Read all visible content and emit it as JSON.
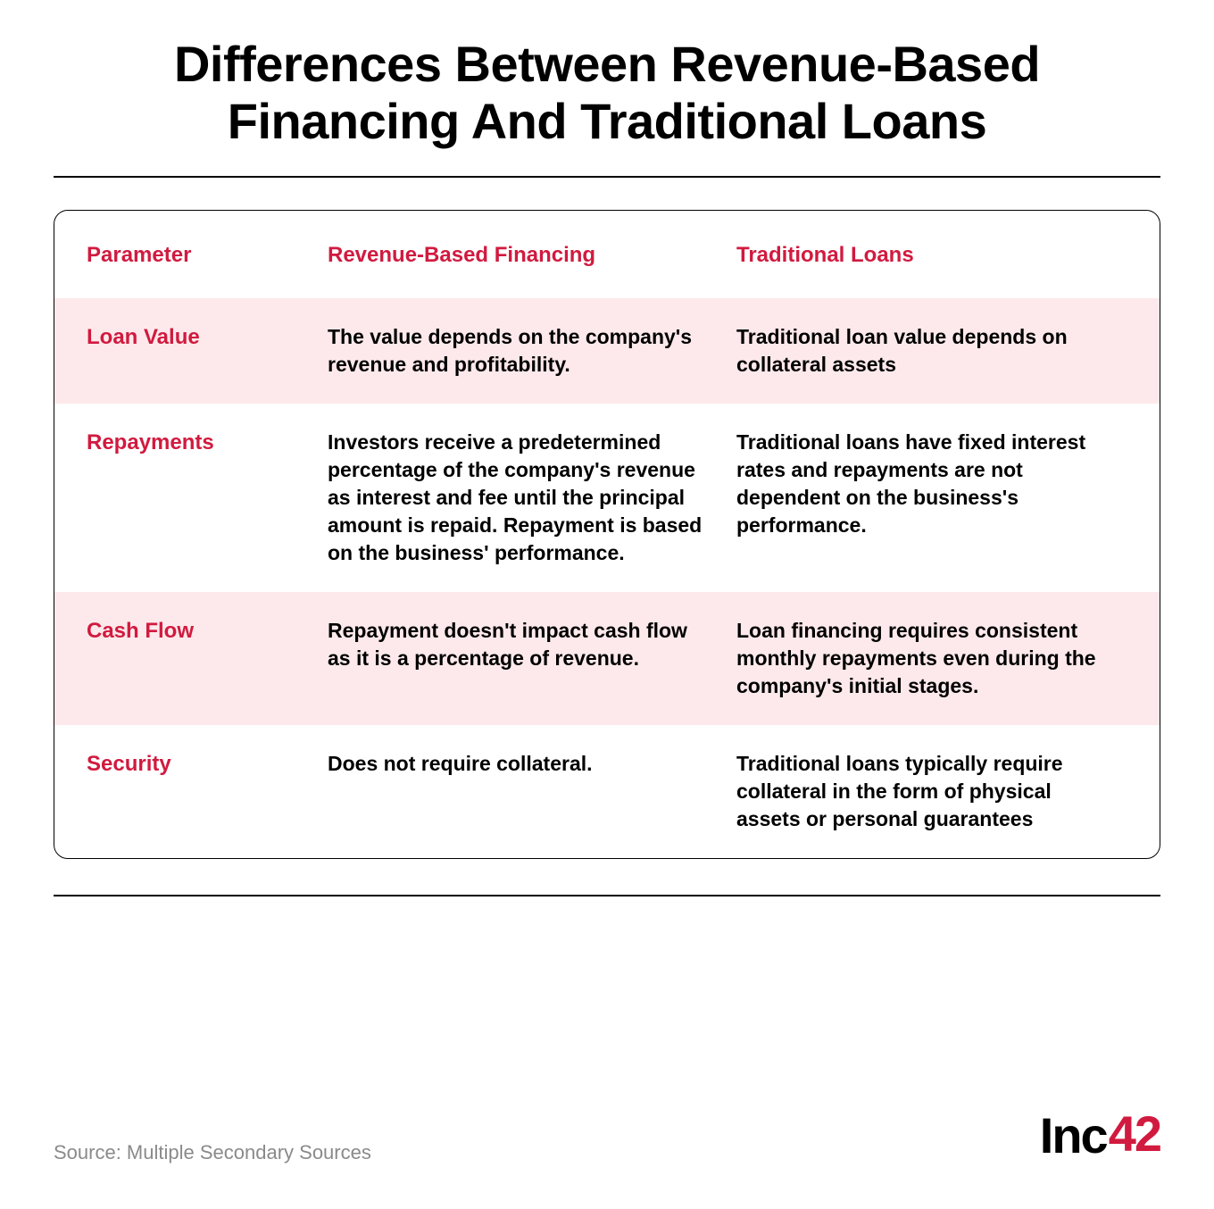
{
  "title": "Differences Between Revenue-Based Financing And Traditional Loans",
  "colors": {
    "accent": "#d11a3f",
    "text": "#000000",
    "row_alt_bg": "#fde9eb",
    "background": "#ffffff",
    "source_text": "#8a8a8a",
    "border": "#000000"
  },
  "typography": {
    "title_fontsize": 56,
    "title_weight": 900,
    "header_fontsize": 24,
    "header_weight": 800,
    "cell_fontsize": 23,
    "cell_weight": 700,
    "source_fontsize": 22,
    "logo_fontsize": 56
  },
  "layout": {
    "grid_columns": "250px 1fr 1fr",
    "border_radius": 16,
    "row_padding_v": 28,
    "row_padding_h": 36
  },
  "table": {
    "headers": {
      "col0": "Parameter",
      "col1": "Revenue-Based Financing",
      "col2": "Traditional Loans"
    },
    "rows": [
      {
        "param": "Loan Value",
        "rbf": "The value depends on the company's revenue and profitability.",
        "trad": "Traditional loan value depends on collateral assets",
        "alt": true
      },
      {
        "param": "Repayments",
        "rbf": "Investors receive a predetermined percentage of the company's revenue as interest and fee until the principal amount is repaid. Repayment is based on the business' performance.",
        "trad": "Traditional loans have fixed interest rates and repayments are not dependent on the business's performance.",
        "alt": false
      },
      {
        "param": "Cash Flow",
        "rbf": "Repayment doesn't impact cash flow as it is a percentage of revenue.",
        "trad": "Loan financing requires consistent monthly repayments even during the company's initial stages.",
        "alt": true
      },
      {
        "param": "Security",
        "rbf": "Does not require collateral.",
        "trad": "Traditional loans typically require collateral in the form of physical assets or personal guarantees",
        "alt": false
      }
    ]
  },
  "footer": {
    "source": "Source: Multiple Secondary Sources",
    "logo_main": "Inc",
    "logo_accent": "42"
  }
}
